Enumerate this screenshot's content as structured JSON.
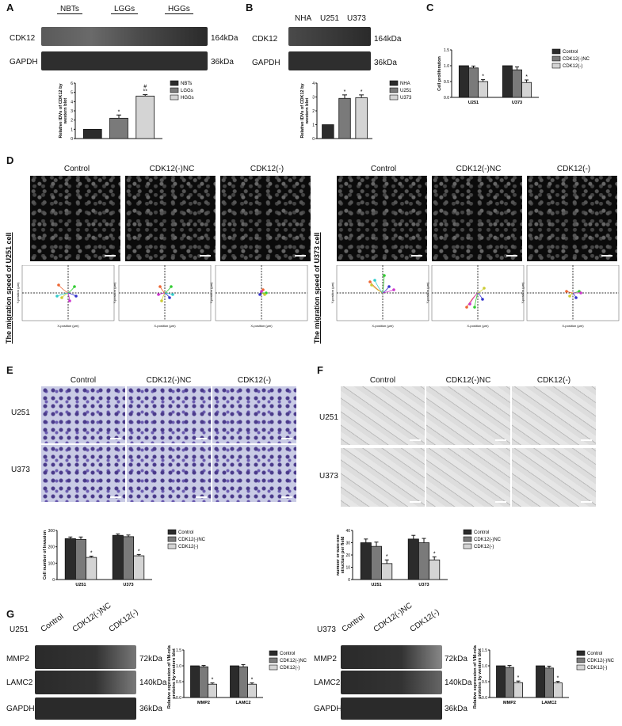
{
  "panels": {
    "A": {
      "label": "A",
      "groups": [
        "NBTs",
        "LGGs",
        "HGGs"
      ],
      "rows": [
        {
          "name": "CDK12",
          "kda": "164kDa"
        },
        {
          "name": "GAPDH",
          "kda": "36kDa"
        }
      ]
    },
    "B": {
      "label": "B",
      "groups": [
        "NHA",
        "U251",
        "U373"
      ],
      "rows": [
        {
          "name": "CDK12",
          "kda": "164kDa"
        },
        {
          "name": "GAPDH",
          "kda": "36kDa"
        }
      ]
    },
    "C": {
      "label": "C"
    },
    "D": {
      "label": "D",
      "cols": [
        "Control",
        "CDK12(-)NC",
        "CDK12(-)"
      ],
      "side_u251": "The migration speed of U251 cell",
      "side_u373": "The migration speed of U373 cell",
      "xaxis": "X-position (μm)",
      "yaxis": "Y-position (μm)"
    },
    "E": {
      "label": "E",
      "cols": [
        "Control",
        "CDK12(-)NC",
        "CDK12(-)"
      ],
      "rows": [
        "U251",
        "U373"
      ]
    },
    "F": {
      "label": "F",
      "cols": [
        "Control",
        "CDK12(-)NC",
        "CDK12(-)"
      ],
      "rows": [
        "U251",
        "U373"
      ]
    },
    "G": {
      "label": "G",
      "left": {
        "cell": "U251",
        "lanes": [
          "Control",
          "CDK12(-)NC",
          "CDK12(-)"
        ],
        "rows": [
          {
            "name": "MMP2",
            "kda": "72kDa"
          },
          {
            "name": "LAMC2",
            "kda": "140kDa"
          },
          {
            "name": "GAPDH",
            "kda": "36kDa"
          }
        ]
      },
      "right": {
        "cell": "U373",
        "lanes": [
          "Control",
          "CDK12(-)NC",
          "CDK12(-)"
        ],
        "rows": [
          {
            "name": "MMP2",
            "kda": "72kDa"
          },
          {
            "name": "LAMC2",
            "kda": "140kDa"
          },
          {
            "name": "GAPDH",
            "kda": "36kDa"
          }
        ]
      }
    }
  },
  "colors": {
    "dark": "#2b2b2b",
    "mid": "#7a7a7a",
    "light": "#d4d4d4"
  },
  "chart_data": [
    {
      "id": "A",
      "type": "bar",
      "categories": [
        "NBTs",
        "LGGs",
        "HGGs"
      ],
      "values": [
        1.0,
        2.2,
        4.6
      ],
      "errors": [
        0,
        0.35,
        0.15
      ],
      "annot": [
        "",
        "*",
        "#\n**"
      ],
      "ylabel": "Relative IDVs of CDK12 by western blot",
      "ylim": [
        0,
        6
      ],
      "yticks": [
        0,
        1,
        2,
        3,
        4,
        5,
        6
      ],
      "legend": [
        "NBTs",
        "LGGs",
        "HGGs"
      ]
    },
    {
      "id": "B",
      "type": "bar",
      "categories": [
        "NHA",
        "U251",
        "U373"
      ],
      "values": [
        1.0,
        2.9,
        2.95
      ],
      "errors": [
        0,
        0.25,
        0.2
      ],
      "annot": [
        "",
        "*",
        "*"
      ],
      "ylabel": "Relative IDVs of CDK12 by western blot",
      "ylim": [
        0,
        4
      ],
      "yticks": [
        0,
        1,
        2,
        3,
        4
      ],
      "legend": [
        "NHA",
        "U251",
        "U373"
      ]
    },
    {
      "id": "C",
      "type": "bar",
      "categories": [
        "U251",
        "U373"
      ],
      "series": [
        {
          "name": "Control",
          "values": [
            1.0,
            1.0
          ]
        },
        {
          "name": "CDK12(-)NC",
          "values": [
            0.93,
            0.87
          ]
        },
        {
          "name": "CDK12(-)",
          "values": [
            0.5,
            0.47
          ]
        }
      ],
      "errors": [
        [
          0,
          0
        ],
        [
          0.06,
          0.09
        ],
        [
          0.06,
          0.08
        ]
      ],
      "ylabel": "Cell proliferation",
      "ylim": [
        0,
        1.5
      ],
      "yticks": [
        "0.0",
        "0.5",
        "1.0",
        "1.5"
      ],
      "legend": [
        "Control",
        "CDK12(-)NC",
        "CDK12(-)"
      ]
    },
    {
      "id": "E",
      "type": "bar",
      "categories": [
        "U251",
        "U373"
      ],
      "series": [
        {
          "name": "Control",
          "values": [
            250,
            270
          ]
        },
        {
          "name": "CDK12(-)NC",
          "values": [
            245,
            262
          ]
        },
        {
          "name": "CDK12(-)",
          "values": [
            135,
            145
          ]
        }
      ],
      "errors": [
        [
          10,
          9
        ],
        [
          15,
          10
        ],
        [
          8,
          8
        ]
      ],
      "ylabel": "Cell number of Invasion",
      "ylim": [
        0,
        300
      ],
      "yticks": [
        "0",
        "100",
        "200",
        "300"
      ],
      "legend": [
        "Control",
        "CDK12(-)NC",
        "CDK12(-)"
      ]
    },
    {
      "id": "F",
      "type": "bar",
      "categories": [
        "U251",
        "U373"
      ],
      "series": [
        {
          "name": "Control",
          "values": [
            30,
            33
          ]
        },
        {
          "name": "CDK12(-)NC",
          "values": [
            27,
            30
          ]
        },
        {
          "name": "CDK12(-)",
          "values": [
            13,
            16
          ]
        }
      ],
      "errors": [
        [
          3,
          3
        ],
        [
          3.5,
          3.5
        ],
        [
          3,
          2.5
        ]
      ],
      "ylabel": "Number of tube-like structure per field",
      "ylim": [
        0,
        40
      ],
      "yticks": [
        "0",
        "10",
        "20",
        "30",
        "40"
      ],
      "legend": [
        "Control",
        "CDK12(-)NC",
        "CDK12(-)"
      ]
    },
    {
      "id": "G1",
      "type": "bar",
      "categories": [
        "MMP2",
        "LAMC2"
      ],
      "series": [
        {
          "name": "Control",
          "values": [
            1.0,
            1.0
          ]
        },
        {
          "name": "CDK12(-)NC",
          "values": [
            0.97,
            0.97
          ]
        },
        {
          "name": "CDK12(-)",
          "values": [
            0.42,
            0.42
          ]
        }
      ],
      "errors": [
        [
          0,
          0
        ],
        [
          0.04,
          0.07
        ],
        [
          0.04,
          0.04
        ]
      ],
      "ylabel": "Relative expression of VM-related proteins by western blot",
      "ylim": [
        0,
        1.5
      ],
      "yticks": [
        "0.0",
        "0.5",
        "1.0",
        "1.5"
      ],
      "legend": [
        "Control",
        "CDK12(-)NC",
        "CDK12(-)"
      ]
    },
    {
      "id": "G2",
      "type": "bar",
      "categories": [
        "MMP2",
        "LAMC2"
      ],
      "series": [
        {
          "name": "Control",
          "values": [
            1.0,
            1.0
          ]
        },
        {
          "name": "CDK12(-)NC",
          "values": [
            0.95,
            0.93
          ]
        },
        {
          "name": "CDK12(-)",
          "values": [
            0.47,
            0.46
          ]
        }
      ],
      "errors": [
        [
          0,
          0
        ],
        [
          0.06,
          0.06
        ],
        [
          0.05,
          0.05
        ]
      ],
      "ylabel": "Relative expression of VM-related proteins by western blot",
      "ylim": [
        0,
        1.5
      ],
      "yticks": [
        "0.0",
        "0.5",
        "1.0",
        "1.5"
      ],
      "legend": [
        "Control",
        "CDK12(-)NC",
        "CDK12(-)"
      ]
    }
  ]
}
